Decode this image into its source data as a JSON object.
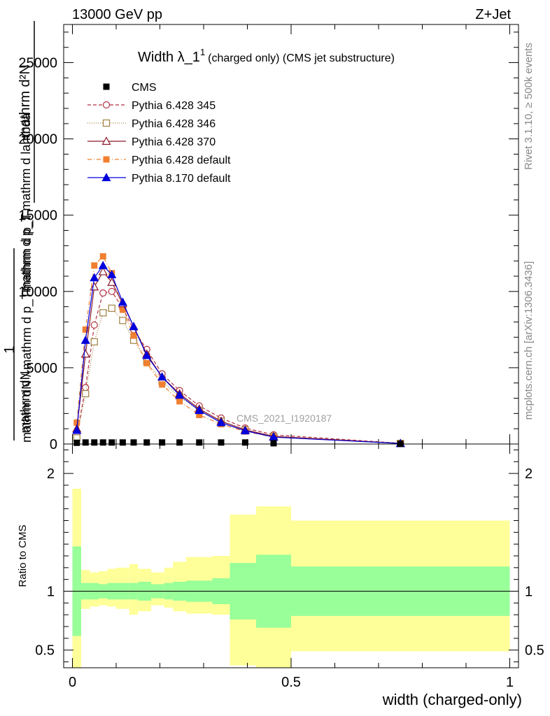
{
  "header": {
    "left": "13000 GeV pp",
    "right": "Z+Jet"
  },
  "side_labels": {
    "rivet": "Rivet 3.1.10, ≥ 500k events",
    "mcplots": "mcplots.cern.ch [arXiv:1306.3436]"
  },
  "chart_data": {
    "type": "line",
    "title_main": "Width λ_1",
    "title_sup": "1",
    "title_sub": "(charged only) (CMS jet substructure)",
    "watermark": "CMS_2021_I1920187",
    "ylabel_top": "1",
    "ylabel_frac_num": "mathrm d²N",
    "ylabel_frac_den": "mathrm d p_T mathrm d lambda",
    "ylabel_lower_num": "mathrm dN",
    "ylabel_lower_den": "mathrm d p_T",
    "ylabel_prefix": "mathrm dN / mathrm d p_T",
    "xlabel": "width (charged-only)",
    "ratio_ylabel": "Ratio to CMS",
    "xlim": [
      -0.02,
      1.02
    ],
    "ylim": [
      0,
      27500
    ],
    "ratio_ylim": [
      0.35,
      2.25
    ],
    "x_ticks": [
      {
        "v": 0,
        "label": "0"
      },
      {
        "v": 0.5,
        "label": "0.5"
      },
      {
        "v": 1,
        "label": "1"
      }
    ],
    "y_ticks": [
      {
        "v": 0,
        "label": "0"
      },
      {
        "v": 5000,
        "label": "5000"
      },
      {
        "v": 10000,
        "label": "10000"
      },
      {
        "v": 15000,
        "label": "15000"
      },
      {
        "v": 20000,
        "label": "20000"
      },
      {
        "v": 25000,
        "label": "25000"
      }
    ],
    "ratio_ticks": [
      {
        "v": 0.5,
        "label": "0.5"
      },
      {
        "v": 1,
        "label": "1"
      },
      {
        "v": 2,
        "label": "2"
      }
    ],
    "x": [
      0.01,
      0.03,
      0.05,
      0.07,
      0.09,
      0.115,
      0.14,
      0.17,
      0.205,
      0.245,
      0.29,
      0.34,
      0.395,
      0.46,
      0.75
    ],
    "series": [
      {
        "name": "CMS",
        "color": "#000000",
        "marker": "square-filled",
        "dash": "none",
        "values": [
          80,
          100,
          100,
          100,
          100,
          100,
          100,
          100,
          100,
          100,
          100,
          100,
          100,
          50,
          10
        ]
      },
      {
        "name": "Pythia 6.428 345",
        "color": "#b03040",
        "marker": "circle-open",
        "dash": "5,3",
        "values": [
          600,
          3700,
          7800,
          9900,
          10000,
          8900,
          7500,
          6200,
          4600,
          3500,
          2500,
          1700,
          1050,
          600,
          50
        ]
      },
      {
        "name": "Pythia 6.428 346",
        "color": "#a08040",
        "marker": "square-open",
        "dash": "1,2",
        "values": [
          400,
          3300,
          6700,
          8600,
          8900,
          8100,
          6800,
          5400,
          4100,
          3100,
          2200,
          1500,
          920,
          500,
          40
        ]
      },
      {
        "name": "Pythia 6.428 370",
        "color": "#8b1a2b",
        "marker": "triangle-open",
        "dash": "none",
        "values": [
          1000,
          5900,
          10300,
          11300,
          10600,
          9200,
          7700,
          5900,
          4400,
          3300,
          2300,
          1500,
          930,
          500,
          40
        ]
      },
      {
        "name": "Pythia 6.428 default",
        "color": "#f08030",
        "marker": "square-filled",
        "dash": "6,3,1,3",
        "values": [
          1400,
          7500,
          11700,
          12300,
          11200,
          8800,
          7100,
          5300,
          3900,
          2800,
          1900,
          1300,
          820,
          450,
          40
        ]
      },
      {
        "name": "Pythia 8.170 default",
        "color": "#0000dd",
        "marker": "triangle-filled",
        "dash": "none",
        "values": [
          900,
          6800,
          10900,
          11700,
          11100,
          9300,
          7700,
          5800,
          4400,
          3200,
          2200,
          1400,
          870,
          450,
          35
        ]
      }
    ],
    "ratio_bands": {
      "edges": [
        0.0,
        0.02,
        0.04,
        0.06,
        0.08,
        0.1,
        0.13,
        0.15,
        0.18,
        0.21,
        0.23,
        0.26,
        0.32,
        0.36,
        0.42,
        0.5,
        1.0
      ],
      "stat_lo": [
        0.62,
        0.93,
        0.93,
        0.94,
        0.93,
        0.93,
        0.93,
        0.92,
        0.94,
        0.93,
        0.92,
        0.91,
        0.89,
        0.76,
        0.69,
        0.79
      ],
      "stat_hi": [
        1.38,
        1.07,
        1.07,
        1.06,
        1.07,
        1.07,
        1.07,
        1.08,
        1.06,
        1.07,
        1.08,
        1.09,
        1.11,
        1.24,
        1.31,
        1.21
      ],
      "syst_lo": [
        0.3,
        0.85,
        0.87,
        0.88,
        0.87,
        0.85,
        0.8,
        0.83,
        0.88,
        0.86,
        0.83,
        0.81,
        0.8,
        0.37,
        0.35,
        0.49
      ],
      "syst_hi": [
        1.87,
        1.18,
        1.16,
        1.17,
        1.19,
        1.2,
        1.23,
        1.19,
        1.16,
        1.2,
        1.25,
        1.29,
        1.3,
        1.65,
        1.72,
        1.6
      ],
      "stat_color": "#99ff99",
      "syst_color": "#ffff99"
    }
  }
}
